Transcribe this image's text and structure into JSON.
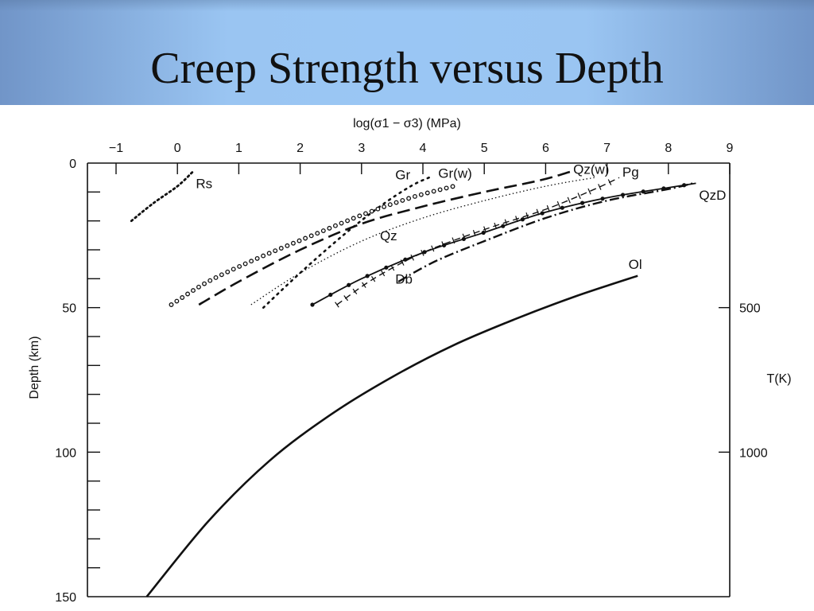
{
  "slide": {
    "title": "Creep Strength versus Depth"
  },
  "chart_data": {
    "type": "line",
    "title": "",
    "xlabel": "log(σ1 − σ3) (MPa)",
    "ylabel": "Depth (km)",
    "right_axis_label": "T(K)",
    "xlim": [
      -1.4,
      9.1
    ],
    "ylim": [
      0,
      150
    ],
    "x_ticks": [
      "−1",
      "0",
      "1",
      "2",
      "3",
      "4",
      "5",
      "6",
      "7",
      "8",
      "9"
    ],
    "y_ticks": [
      "0",
      "50",
      "100",
      "150"
    ],
    "right_ticks": [
      {
        "depth": 50,
        "label": "500"
      },
      {
        "depth": 100,
        "label": "1000"
      }
    ],
    "grid": false,
    "legend": "none",
    "series": [
      {
        "name": "Rs",
        "style": "dense-dot",
        "points": [
          [
            -0.75,
            20
          ],
          [
            -0.4,
            14
          ],
          [
            0,
            8
          ],
          [
            0.25,
            3
          ]
        ]
      },
      {
        "name": "Gr",
        "style": "sparse-dot",
        "points": [
          [
            1.4,
            50
          ],
          [
            2.0,
            38
          ],
          [
            2.7,
            25
          ],
          [
            3.3,
            15
          ],
          [
            3.8,
            8
          ],
          [
            4.1,
            5
          ]
        ]
      },
      {
        "name": "Gr(w)",
        "style": "open-circles",
        "points": [
          [
            -0.1,
            49
          ],
          [
            0.5,
            41
          ],
          [
            1.3,
            33
          ],
          [
            2.2,
            25
          ],
          [
            3.0,
            18
          ],
          [
            3.8,
            12
          ],
          [
            4.5,
            8
          ]
        ]
      },
      {
        "name": "Qz(w)",
        "style": "long-dash",
        "points": [
          [
            0.35,
            49
          ],
          [
            1.0,
            41
          ],
          [
            2.0,
            30
          ],
          [
            3.0,
            21
          ],
          [
            4.0,
            15
          ],
          [
            5.0,
            10
          ],
          [
            5.9,
            6
          ],
          [
            6.4,
            3
          ]
        ]
      },
      {
        "name": "Qz",
        "style": "fine-dot",
        "points": [
          [
            1.2,
            49
          ],
          [
            2.0,
            38
          ],
          [
            3.0,
            27
          ],
          [
            4.0,
            19
          ],
          [
            5.0,
            13
          ],
          [
            6.0,
            8
          ],
          [
            6.8,
            5
          ]
        ]
      },
      {
        "name": "Pg",
        "style": "dash-cross",
        "points": [
          [
            2.6,
            49
          ],
          [
            3.2,
            40
          ],
          [
            4.0,
            31
          ],
          [
            5.0,
            23
          ],
          [
            6.0,
            16
          ],
          [
            6.8,
            9
          ],
          [
            7.2,
            5
          ]
        ]
      },
      {
        "name": "Db",
        "style": "dash-dot",
        "points": [
          [
            3.6,
            41
          ],
          [
            4.2,
            34
          ],
          [
            5.0,
            27
          ],
          [
            6.0,
            19
          ],
          [
            7.0,
            13
          ],
          [
            8.0,
            9
          ],
          [
            8.4,
            7
          ]
        ]
      },
      {
        "name": "QzD",
        "style": "solid-dots",
        "points": [
          [
            2.2,
            49
          ],
          [
            3.0,
            40
          ],
          [
            4.0,
            31
          ],
          [
            5.0,
            24
          ],
          [
            6.0,
            17
          ],
          [
            7.0,
            12
          ],
          [
            8.0,
            8.5
          ],
          [
            8.45,
            7
          ]
        ]
      },
      {
        "name": "Ol",
        "style": "solid",
        "points": [
          [
            -0.5,
            150
          ],
          [
            0.5,
            124
          ],
          [
            1.5,
            103
          ],
          [
            2.5,
            87
          ],
          [
            3.5,
            74
          ],
          [
            4.5,
            63
          ],
          [
            5.5,
            54
          ],
          [
            6.5,
            46
          ],
          [
            7.5,
            39
          ]
        ]
      }
    ],
    "series_labels": [
      {
        "text": "Rs",
        "x": 0.3,
        "y": 7
      },
      {
        "text": "Gr",
        "x": 3.55,
        "y": 4
      },
      {
        "text": "Gr(w)",
        "x": 4.25,
        "y": 3.5
      },
      {
        "text": "Qz(w)",
        "x": 6.45,
        "y": 2
      },
      {
        "text": "Pg",
        "x": 7.25,
        "y": 3
      },
      {
        "text": "Qz",
        "x": 3.3,
        "y": 25
      },
      {
        "text": "QzD",
        "x": 8.5,
        "y": 11
      },
      {
        "text": "Db",
        "x": 3.55,
        "y": 40
      },
      {
        "text": "Ol",
        "x": 7.35,
        "y": 35
      }
    ]
  }
}
